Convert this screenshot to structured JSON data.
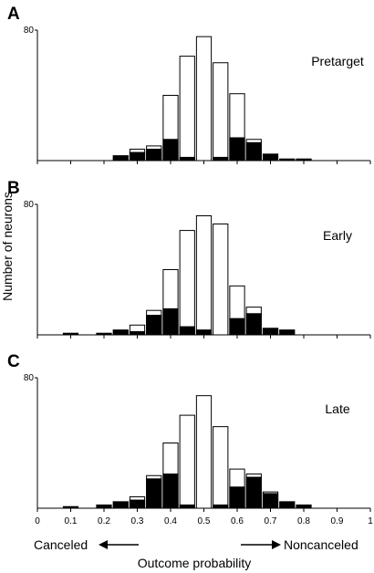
{
  "chart_data": [
    {
      "type": "bar",
      "panel": "A",
      "condition": "Pretarget",
      "ylim": [
        0,
        80
      ],
      "y_tick_label": "80",
      "xlim": [
        0,
        1
      ],
      "bin_width": 0.05,
      "x": [
        0.25,
        0.3,
        0.35,
        0.4,
        0.45,
        0.5,
        0.55,
        0.6,
        0.65,
        0.7,
        0.75,
        0.8
      ],
      "series": [
        {
          "name": "",
          "fill": "white",
          "values": [
            0,
            7,
            9,
            40,
            64,
            76,
            60,
            41,
            13,
            0,
            0,
            0
          ]
        },
        {
          "name": "",
          "fill": "black",
          "values": [
            3,
            5,
            7,
            13,
            2,
            0,
            2,
            14,
            11,
            4,
            1,
            1
          ]
        }
      ]
    },
    {
      "type": "bar",
      "panel": "B",
      "condition": "Early",
      "ylim": [
        0,
        80
      ],
      "y_tick_label": "80",
      "xlim": [
        0,
        1
      ],
      "bin_width": 0.05,
      "x": [
        0.1,
        0.2,
        0.25,
        0.3,
        0.35,
        0.4,
        0.45,
        0.5,
        0.55,
        0.6,
        0.65,
        0.7,
        0.75
      ],
      "series": [
        {
          "name": "",
          "fill": "white",
          "values": [
            0,
            0,
            0,
            6,
            15,
            40,
            64,
            73,
            68,
            30,
            17,
            4,
            0
          ],
          "note": ""
        },
        {
          "name": "",
          "fill": "black",
          "values": [
            1,
            1,
            3,
            2,
            12,
            16,
            5,
            3,
            0,
            10,
            13,
            4,
            3
          ]
        }
      ]
    },
    {
      "type": "bar",
      "panel": "C",
      "condition": "Late",
      "ylim": [
        0,
        80
      ],
      "y_tick_label": "80",
      "xlim": [
        0,
        1
      ],
      "bin_width": 0.05,
      "x": [
        0.1,
        0.2,
        0.25,
        0.3,
        0.35,
        0.4,
        0.45,
        0.5,
        0.55,
        0.6,
        0.65,
        0.7,
        0.75,
        0.8
      ],
      "series": [
        {
          "name": "",
          "fill": "white",
          "values": [
            0,
            0,
            0,
            7,
            20,
            40,
            57,
            69,
            50,
            24,
            21,
            10,
            0,
            0
          ]
        },
        {
          "name": "",
          "fill": "black",
          "values": [
            1,
            2,
            4,
            5,
            18,
            21,
            2,
            0,
            2,
            13,
            19,
            9,
            4,
            2
          ]
        }
      ]
    }
  ],
  "axes": {
    "x_ticks": [
      "0",
      "0.1",
      "0.2",
      "0.3",
      "0.4",
      "0.5",
      "0.6",
      "0.7",
      "0.8",
      "0.9",
      "1"
    ],
    "xlabel": "Outcome probability",
    "ylabel": "Number of neurons",
    "left_annotation": "Canceled",
    "right_annotation": "Noncanceled"
  }
}
